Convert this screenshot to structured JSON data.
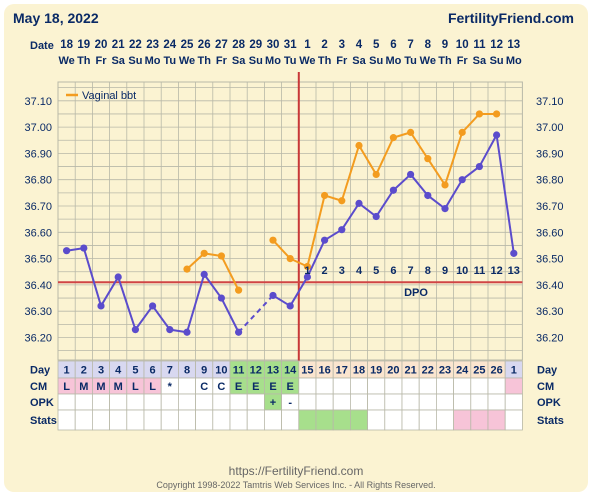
{
  "header": {
    "date": "May 18, 2022",
    "site": "FertilityFriend.com"
  },
  "footer": {
    "url": "https://FertilityFriend.com",
    "copyright": "Copyright 1998-2022 Tamtris Web Services Inc. - All Rights Reserved."
  },
  "colors": {
    "background": "#fbf3d2",
    "grid": "#b8b8a8",
    "temp_line": "#5b4ccc",
    "vaginal_line": "#f39c1f",
    "coverline": "#d04545",
    "ovulation_line": "#c83838",
    "fertile": "#a7df8c",
    "mucus": "#f7c4d8",
    "day_cell": "#d8d8f0"
  },
  "row_labels": {
    "date": "Date",
    "day": "Day",
    "cm": "CM",
    "opk": "OPK",
    "stats": "Stats"
  },
  "dates": [
    "18",
    "19",
    "20",
    "21",
    "22",
    "23",
    "24",
    "25",
    "26",
    "27",
    "28",
    "29",
    "30",
    "31",
    "1",
    "2",
    "3",
    "4",
    "5",
    "6",
    "7",
    "8",
    "9",
    "10",
    "11",
    "12",
    "13"
  ],
  "weekdays": [
    "We",
    "Th",
    "Fr",
    "Sa",
    "Su",
    "Mo",
    "Tu",
    "We",
    "Th",
    "Fr",
    "Sa",
    "Su",
    "Mo",
    "Tu",
    "We",
    "Th",
    "Fr",
    "Sa",
    "Su",
    "Mo",
    "Tu",
    "We",
    "Th",
    "Fr",
    "Sa",
    "Su",
    "Mo"
  ],
  "cycle_days": [
    "1",
    "2",
    "3",
    "4",
    "5",
    "6",
    "7",
    "8",
    "9",
    "10",
    "11",
    "12",
    "13",
    "14",
    "15",
    "16",
    "17",
    "18",
    "19",
    "20",
    "21",
    "22",
    "23",
    "24",
    "25",
    "26",
    "1"
  ],
  "cm": [
    "L",
    "M",
    "M",
    "M",
    "L",
    "L",
    "*",
    "",
    "C",
    "C",
    "E",
    "E",
    "E",
    "E",
    "",
    "",
    "",
    "",
    "",
    "",
    "",
    "",
    "",
    "",
    "",
    "",
    ""
  ],
  "opk": [
    "",
    "",
    "",
    "",
    "",
    "",
    "",
    "",
    "",
    "",
    "",
    "",
    "+",
    "-",
    "",
    "",
    "",
    "",
    "",
    "",
    "",
    "",
    "",
    "",
    "",
    "",
    ""
  ],
  "stats_highlight": [
    "",
    "",
    "",
    "",
    "",
    "",
    "",
    "",
    "",
    "",
    "",
    "",
    "",
    "",
    "fertile",
    "fertile",
    "fertile",
    "fertile",
    "",
    "",
    "",
    "",
    "",
    "mucus",
    "mucus",
    "mucus",
    ""
  ],
  "dpo": {
    "label": "DPO",
    "values": [
      "1",
      "2",
      "3",
      "4",
      "5",
      "6",
      "7",
      "8",
      "9",
      "10",
      "11",
      "12",
      "13"
    ]
  },
  "chart_data": {
    "type": "line",
    "x": [
      "18",
      "19",
      "20",
      "21",
      "22",
      "23",
      "24",
      "25",
      "26",
      "27",
      "28",
      "29",
      "30",
      "31",
      "1",
      "2",
      "3",
      "4",
      "5",
      "6",
      "7",
      "8",
      "9",
      "10",
      "11",
      "12",
      "13"
    ],
    "ylim": [
      36.15,
      37.15
    ],
    "y_ticks": [
      "37.10",
      "37.00",
      "36.90",
      "36.80",
      "36.70",
      "36.60",
      "36.50",
      "36.40",
      "36.30",
      "36.20"
    ],
    "coverline": 36.41,
    "ovulation_day": "14",
    "legend": "Vaginal bbt",
    "legend_position": "top-left",
    "grid": true,
    "series": [
      {
        "role": "temperature",
        "values": [
          36.53,
          36.54,
          36.32,
          36.43,
          36.23,
          36.32,
          36.23,
          36.22,
          36.44,
          36.35,
          36.22,
          null,
          36.36,
          36.32,
          36.43,
          36.57,
          36.61,
          36.71,
          36.66,
          36.76,
          36.82,
          36.74,
          36.69,
          36.8,
          36.85,
          36.97,
          36.52
        ]
      },
      {
        "name": "Vaginal bbt",
        "values": [
          null,
          null,
          null,
          null,
          null,
          null,
          null,
          36.46,
          36.52,
          36.51,
          36.38,
          null,
          36.57,
          36.5,
          36.47,
          36.74,
          36.72,
          36.93,
          36.82,
          36.96,
          36.98,
          36.88,
          36.78,
          36.98,
          37.05,
          37.05,
          null
        ]
      }
    ]
  }
}
